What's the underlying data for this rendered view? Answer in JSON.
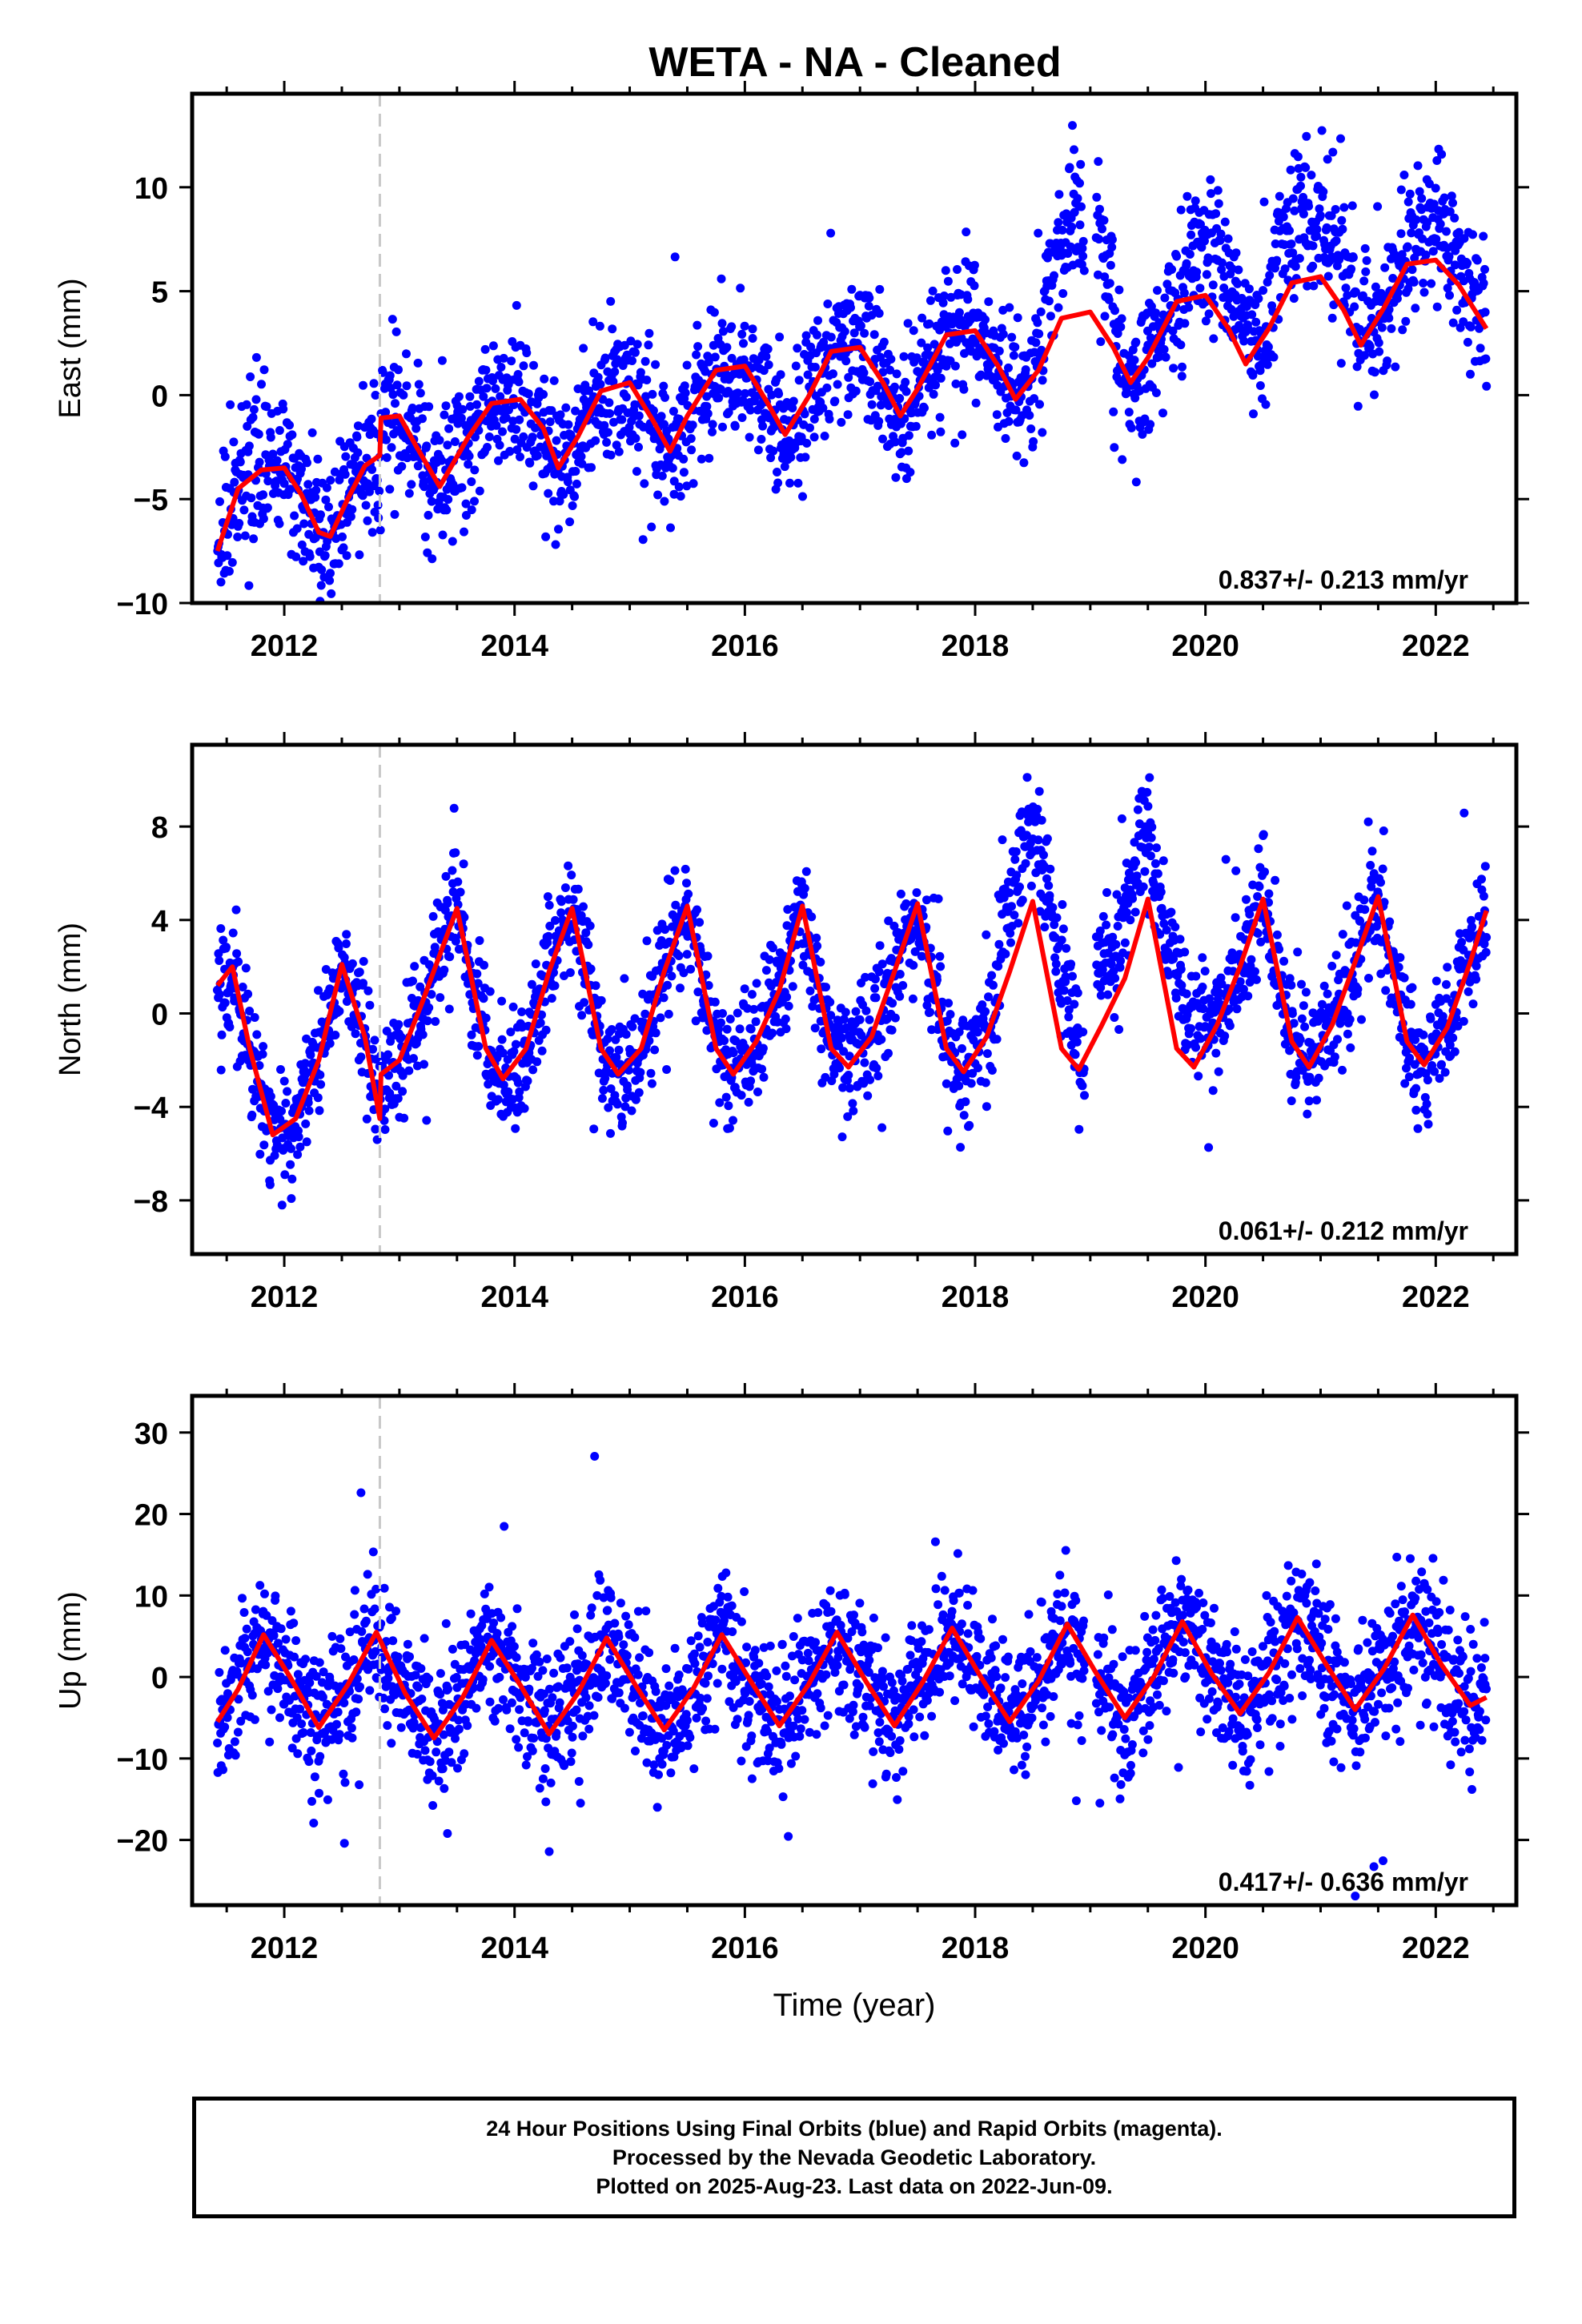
{
  "title": "WETA  - NA - Cleaned",
  "colors": {
    "data": "#0000ff",
    "model": "#ff0000",
    "break": "#c8c8c8",
    "axis": "#000000"
  },
  "footer": {
    "line1": "24 Hour Positions Using Final Orbits (blue) and Rapid Orbits (magenta).",
    "line2": "Processed by the Nevada Geodetic Laboratory.",
    "line3": "Plotted on 2025-Aug-23. Last data on 2022-Jun-09."
  },
  "chart_data": [
    {
      "type": "scatter",
      "ylabel": "East (mm)",
      "xlabel": "",
      "xlim": [
        2011.2,
        2022.7
      ],
      "ylim": [
        -10,
        14.5
      ],
      "xticks": [
        2012,
        2014,
        2016,
        2018,
        2020,
        2022
      ],
      "yticks": [
        -10,
        -5,
        0,
        5,
        10
      ],
      "ytick_labels": [
        "−10",
        "−5",
        "0",
        "5",
        "10"
      ],
      "rate_label": "0.837+/- 0.213 mm/yr",
      "break_x": 2012.83,
      "data_range": [
        2011.42,
        2022.44
      ],
      "series_model": {
        "x": [
          2011.42,
          2011.6,
          2011.8,
          2012.0,
          2012.15,
          2012.3,
          2012.4,
          2012.55,
          2012.7,
          2012.83,
          2012.84,
          2013.0,
          2013.15,
          2013.35,
          2013.6,
          2013.8,
          2014.05,
          2014.25,
          2014.38,
          2014.55,
          2014.75,
          2015.0,
          2015.2,
          2015.35,
          2015.5,
          2015.75,
          2016.0,
          2016.2,
          2016.35,
          2016.55,
          2016.75,
          2017.0,
          2017.2,
          2017.35,
          2017.5,
          2017.75,
          2018.0,
          2018.2,
          2018.35,
          2018.55,
          2018.75,
          2019.0,
          2019.2,
          2019.35,
          2019.5,
          2019.75,
          2020.0,
          2020.2,
          2020.35,
          2020.55,
          2020.75,
          2021.0,
          2021.2,
          2021.35,
          2021.55,
          2021.75,
          2022.0,
          2022.2,
          2022.44
        ],
        "y": [
          -7.5,
          -4.5,
          -3.6,
          -3.5,
          -4.8,
          -6.6,
          -6.8,
          -5.0,
          -3.4,
          -2.9,
          -1.1,
          -1.0,
          -2.5,
          -4.4,
          -2.0,
          -0.4,
          -0.2,
          -1.6,
          -3.5,
          -2.0,
          0.2,
          0.6,
          -1.2,
          -2.7,
          -1.0,
          1.2,
          1.4,
          -0.4,
          -1.9,
          -0.1,
          2.1,
          2.3,
          0.6,
          -1.0,
          0.3,
          2.9,
          3.1,
          1.4,
          -0.2,
          1.2,
          3.7,
          4.0,
          2.3,
          0.6,
          1.8,
          4.5,
          4.8,
          3.2,
          1.5,
          3.2,
          5.4,
          5.7,
          4.1,
          2.4,
          4.2,
          6.3,
          6.5,
          5.3,
          3.2
        ]
      },
      "scatter": {
        "x_start": 2011.42,
        "x_end": 2022.44,
        "count": 2300,
        "noise": 1.7,
        "gap": [
          2018.95,
          2019.05
        ],
        "segments": [
          {
            "from": 2011.42,
            "to": 2018.6,
            "offset": 0
          },
          {
            "from": 2018.6,
            "to": 2019.2,
            "offset": 4.5
          },
          {
            "from": 2019.8,
            "to": 2020.4,
            "offset": 2.5
          },
          {
            "from": 2020.6,
            "to": 2021.3,
            "offset": 3.0
          },
          {
            "from": 2021.6,
            "to": 2022.3,
            "offset": 1.5
          }
        ]
      }
    },
    {
      "type": "scatter",
      "ylabel": "North (mm)",
      "xlabel": "",
      "xlim": [
        2011.2,
        2022.7
      ],
      "ylim": [
        -10.3,
        11.5
      ],
      "xticks": [
        2012,
        2014,
        2016,
        2018,
        2020,
        2022
      ],
      "yticks": [
        -8,
        -4,
        0,
        4,
        8
      ],
      "ytick_labels": [
        "−8",
        "−4",
        "0",
        "4",
        "8"
      ],
      "rate_label": "0.061+/- 0.212 mm/yr",
      "break_x": 2012.83,
      "data_range": [
        2011.42,
        2022.44
      ],
      "series_model": {
        "x": [
          2011.42,
          2011.55,
          2011.7,
          2011.9,
          2012.1,
          2012.3,
          2012.5,
          2012.7,
          2012.83,
          2012.84,
          2013.0,
          2013.2,
          2013.5,
          2013.75,
          2013.9,
          2014.1,
          2014.3,
          2014.5,
          2014.75,
          2014.9,
          2015.1,
          2015.3,
          2015.5,
          2015.75,
          2015.9,
          2016.1,
          2016.3,
          2016.5,
          2016.75,
          2016.9,
          2017.1,
          2017.3,
          2017.5,
          2017.75,
          2017.9,
          2018.1,
          2018.3,
          2018.5,
          2018.75,
          2018.9,
          2019.1,
          2019.3,
          2019.5,
          2019.75,
          2019.9,
          2020.1,
          2020.3,
          2020.5,
          2020.75,
          2020.9,
          2021.1,
          2021.3,
          2021.5,
          2021.75,
          2021.9,
          2022.1,
          2022.3,
          2022.44
        ],
        "y": [
          1.2,
          2.0,
          -1.5,
          -5.2,
          -4.5,
          -2.0,
          2.1,
          -1.0,
          -4.5,
          -2.6,
          -2.0,
          0.5,
          4.5,
          -1.5,
          -2.8,
          -1.5,
          1.8,
          4.5,
          -1.5,
          -2.6,
          -1.5,
          1.8,
          4.6,
          -1.5,
          -2.6,
          -1.2,
          1.0,
          4.6,
          -1.5,
          -2.3,
          -1.0,
          1.8,
          4.7,
          -1.5,
          -2.5,
          -1.0,
          1.8,
          4.8,
          -1.5,
          -2.4,
          -0.5,
          1.5,
          4.9,
          -1.5,
          -2.3,
          -0.5,
          2.0,
          4.9,
          -1.2,
          -2.3,
          -0.5,
          2.2,
          5.0,
          -1.2,
          -2.2,
          -0.6,
          2.2,
          4.4
        ]
      },
      "scatter": {
        "x_start": 2011.42,
        "x_end": 2022.44,
        "count": 2300,
        "noise": 1.3,
        "gap": [
          2018.95,
          2019.05
        ],
        "segments": [
          {
            "from": 2018.2,
            "to": 2018.9,
            "offset": 3.5
          },
          {
            "from": 2019.0,
            "to": 2020.0,
            "offset": 3.0
          }
        ]
      }
    },
    {
      "type": "scatter",
      "ylabel": "Up (mm)",
      "xlabel": "Time (year)",
      "xlim": [
        2011.2,
        2022.7
      ],
      "ylim": [
        -28,
        34.5
      ],
      "xticks": [
        2012,
        2014,
        2016,
        2018,
        2020,
        2022
      ],
      "yticks": [
        -20,
        -10,
        0,
        10,
        20,
        30
      ],
      "ytick_labels": [
        "−20",
        "−10",
        "0",
        "10",
        "20",
        "30"
      ],
      "rate_label": "0.417+/- 0.636 mm/yr",
      "break_x": 2012.83,
      "data_range": [
        2011.42,
        2022.44
      ],
      "series_model": {
        "x": [
          2011.42,
          2011.6,
          2011.82,
          2012.05,
          2012.3,
          2012.55,
          2012.8,
          2013.05,
          2013.3,
          2013.55,
          2013.8,
          2014.05,
          2014.3,
          2014.55,
          2014.8,
          2015.05,
          2015.3,
          2015.55,
          2015.8,
          2016.05,
          2016.3,
          2016.55,
          2016.8,
          2017.05,
          2017.3,
          2017.55,
          2017.8,
          2018.05,
          2018.3,
          2018.55,
          2018.8,
          2019.05,
          2019.3,
          2019.55,
          2019.8,
          2020.05,
          2020.3,
          2020.55,
          2020.8,
          2021.05,
          2021.3,
          2021.55,
          2021.8,
          2022.05,
          2022.3,
          2022.44
        ],
        "y": [
          -5.5,
          -1.5,
          5.2,
          0.0,
          -6.2,
          -1.0,
          5.5,
          -2.0,
          -7.5,
          -2.5,
          4.5,
          -1.0,
          -7.0,
          -2.0,
          4.8,
          -1.0,
          -6.5,
          -1.5,
          5.2,
          -0.5,
          -6.0,
          -1.0,
          5.5,
          -0.5,
          -6.0,
          -0.5,
          6.0,
          0.0,
          -5.5,
          -0.5,
          6.5,
          0.5,
          -5.0,
          0.0,
          6.8,
          0.5,
          -4.5,
          0.5,
          7.3,
          1.5,
          -4.0,
          1.0,
          7.6,
          1.5,
          -3.5,
          -2.5
        ]
      },
      "scatter": {
        "x_start": 2011.42,
        "x_end": 2022.44,
        "count": 2300,
        "noise": 4.2,
        "gap": [
          2018.95,
          2019.05
        ],
        "segments": []
      }
    }
  ]
}
